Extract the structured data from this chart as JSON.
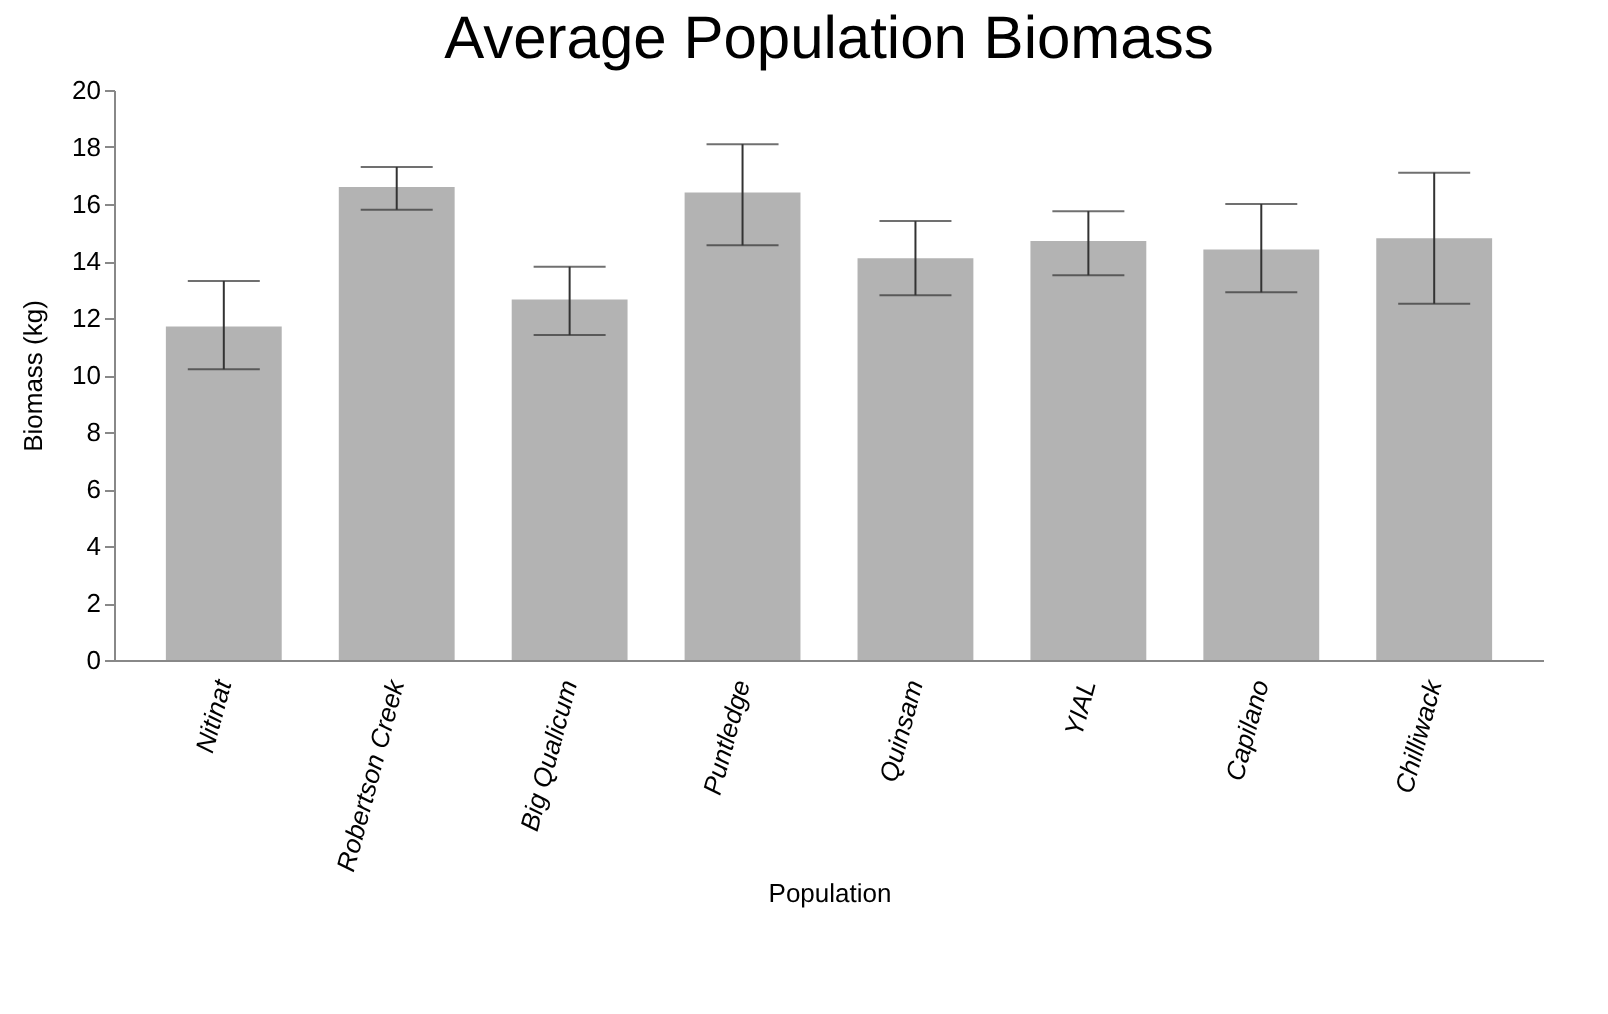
{
  "chart_data": {
    "type": "bar",
    "title": "Average Population Biomass",
    "xlabel": "Population",
    "ylabel": "Biomass (kg)",
    "categories": [
      "Nitinat",
      "Robertson Creek",
      "Big Qualicum",
      "Puntledge",
      "Quinsam",
      "YIAL",
      "Capilano",
      "Chilliwack"
    ],
    "values": [
      11.7,
      16.6,
      12.65,
      16.4,
      14.1,
      14.7,
      14.4,
      14.8
    ],
    "errors": [
      [
        10.2,
        13.3
      ],
      [
        15.8,
        17.3
      ],
      [
        11.4,
        13.8
      ],
      [
        14.55,
        18.1
      ],
      [
        12.8,
        15.4
      ],
      [
        13.5,
        15.75
      ],
      [
        12.9,
        16.0
      ],
      [
        12.5,
        17.1
      ]
    ],
    "color": "#b3b3b3",
    "ylim": [
      0,
      20
    ],
    "yticks": [
      0,
      2,
      4,
      6,
      8,
      10,
      12,
      14,
      16,
      18,
      20
    ],
    "grid": false
  }
}
